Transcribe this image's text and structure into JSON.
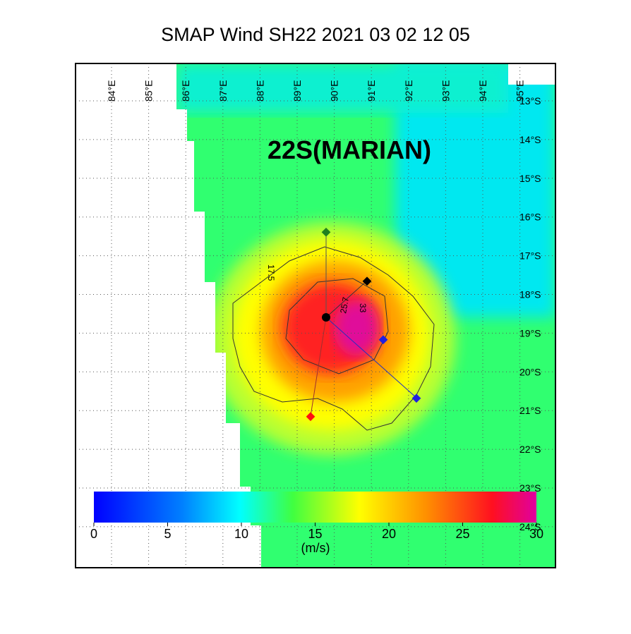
{
  "title": "SMAP Wind  SH22  2021 03 02 12 05",
  "storm_label": "22S(MARIAN)",
  "longitude_labels": [
    "84°E",
    "85°E",
    "86°E",
    "87°E",
    "88°E",
    "89°E",
    "90°E",
    "91°E",
    "92°E",
    "93°E",
    "94°E",
    "95°E"
  ],
  "latitude_labels": [
    "13°S",
    "14°S",
    "15°S",
    "16°S",
    "17°S",
    "18°S",
    "19°S",
    "20°S",
    "21°S",
    "22°S",
    "23°S",
    "24°S"
  ],
  "contour_labels": [
    "17.5",
    "25.7",
    "33"
  ],
  "colorbar": {
    "lim": [
      0,
      30
    ],
    "ticks": [
      0,
      5,
      10,
      15,
      20,
      25,
      30
    ],
    "unit": "(m/s)"
  }
}
